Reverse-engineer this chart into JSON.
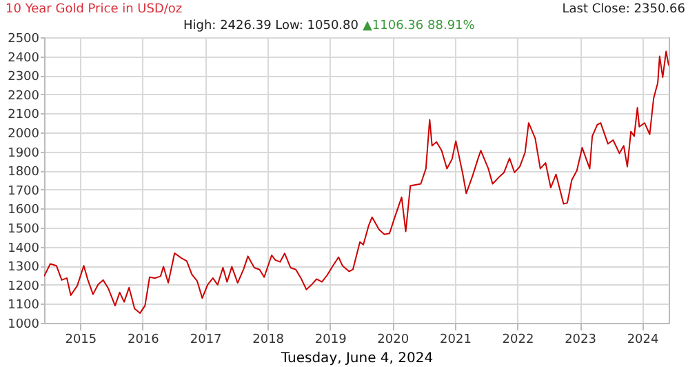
{
  "chart_data": {
    "type": "line",
    "title": "10 Year Gold Price in USD/oz",
    "subtitle": "High: 2426.39 Low: 1050.80",
    "xlabel": "Tuesday, June 4, 2024",
    "annotations": [
      "▲1106.36 88.91%",
      "Last Close: 2350.66"
    ],
    "x": [
      "2014-06-04",
      "2014-07-10",
      "2014-08-15",
      "2014-09-15",
      "2014-10-15",
      "2014-11-07",
      "2014-12-15",
      "2015-01-22",
      "2015-02-15",
      "2015-03-17",
      "2015-04-15",
      "2015-05-15",
      "2015-06-15",
      "2015-07-24",
      "2015-08-20",
      "2015-09-15",
      "2015-10-14",
      "2015-11-15",
      "2015-12-17",
      "2016-01-15",
      "2016-02-11",
      "2016-03-15",
      "2016-04-15",
      "2016-05-02",
      "2016-05-30",
      "2016-07-06",
      "2016-08-15",
      "2016-09-15",
      "2016-10-15",
      "2016-11-15",
      "2016-12-15",
      "2017-01-15",
      "2017-02-15",
      "2017-03-15",
      "2017-04-15",
      "2017-05-09",
      "2017-06-06",
      "2017-07-10",
      "2017-08-15",
      "2017-09-08",
      "2017-10-15",
      "2017-11-15",
      "2017-12-12",
      "2018-01-25",
      "2018-02-15",
      "2018-03-15",
      "2018-04-11",
      "2018-05-15",
      "2018-06-15",
      "2018-07-15",
      "2018-08-16",
      "2018-09-15",
      "2018-10-15",
      "2018-11-15",
      "2018-12-15",
      "2019-01-15",
      "2019-02-20",
      "2019-03-15",
      "2019-04-23",
      "2019-05-15",
      "2019-06-25",
      "2019-07-15",
      "2019-08-15",
      "2019-09-04",
      "2019-10-15",
      "2019-11-15",
      "2019-12-15",
      "2020-01-15",
      "2020-02-24",
      "2020-03-19",
      "2020-04-15",
      "2020-05-15",
      "2020-06-15",
      "2020-07-15",
      "2020-08-06",
      "2020-08-20",
      "2020-09-15",
      "2020-10-15",
      "2020-11-15",
      "2020-12-15",
      "2021-01-06",
      "2021-02-15",
      "2021-03-08",
      "2021-04-15",
      "2021-05-15",
      "2021-06-01",
      "2021-07-15",
      "2021-08-09",
      "2021-09-15",
      "2021-10-15",
      "2021-11-16",
      "2021-12-15",
      "2022-01-15",
      "2022-02-15",
      "2022-03-08",
      "2022-04-15",
      "2022-05-15",
      "2022-06-15",
      "2022-07-15",
      "2022-08-15",
      "2022-09-28",
      "2022-10-20",
      "2022-11-15",
      "2022-12-15",
      "2023-01-15",
      "2023-02-28",
      "2023-03-15",
      "2023-04-13",
      "2023-05-03",
      "2023-06-15",
      "2023-07-15",
      "2023-08-21",
      "2023-09-15",
      "2023-10-06",
      "2023-10-27",
      "2023-11-15",
      "2023-12-04",
      "2023-12-15",
      "2024-01-15",
      "2024-02-14",
      "2024-03-08",
      "2024-04-01",
      "2024-04-12",
      "2024-04-30",
      "2024-05-20",
      "2024-06-04"
    ],
    "series": [
      {
        "color": "#cc0000",
        "values": [
          1245,
          1310,
          1300,
          1225,
          1235,
          1145,
          1195,
          1300,
          1225,
          1150,
          1200,
          1225,
          1180,
          1090,
          1160,
          1110,
          1185,
          1075,
          1051,
          1090,
          1240,
          1235,
          1245,
          1295,
          1210,
          1366,
          1340,
          1325,
          1255,
          1220,
          1130,
          1200,
          1235,
          1200,
          1290,
          1215,
          1295,
          1210,
          1285,
          1350,
          1290,
          1280,
          1240,
          1355,
          1330,
          1320,
          1365,
          1290,
          1280,
          1235,
          1175,
          1200,
          1230,
          1215,
          1250,
          1295,
          1345,
          1300,
          1270,
          1280,
          1425,
          1410,
          1510,
          1555,
          1490,
          1465,
          1470,
          1555,
          1660,
          1480,
          1720,
          1725,
          1730,
          1810,
          2067,
          1930,
          1950,
          1905,
          1810,
          1860,
          1955,
          1785,
          1680,
          1775,
          1860,
          1905,
          1810,
          1730,
          1765,
          1790,
          1865,
          1790,
          1820,
          1895,
          2050,
          1970,
          1810,
          1840,
          1710,
          1780,
          1625,
          1630,
          1750,
          1800,
          1920,
          1810,
          1980,
          2040,
          2050,
          1940,
          1960,
          1890,
          1930,
          1820,
          2005,
          1980,
          2130,
          2030,
          2050,
          1990,
          2180,
          2260,
          2400,
          2290,
          2426,
          2351
        ]
      }
    ],
    "xlim": [
      "2014-06-04",
      "2024-06-04"
    ],
    "xticks": [
      "2015",
      "2016",
      "2017",
      "2018",
      "2019",
      "2020",
      "2021",
      "2022",
      "2023",
      "2024"
    ],
    "ylim": [
      1000,
      2500
    ],
    "yticks": [
      1000,
      1100,
      1200,
      1300,
      1400,
      1500,
      1600,
      1700,
      1800,
      1900,
      2000,
      2100,
      2200,
      2300,
      2400,
      2500
    ],
    "grid": true,
    "line_style": "solid",
    "marker": "none"
  }
}
